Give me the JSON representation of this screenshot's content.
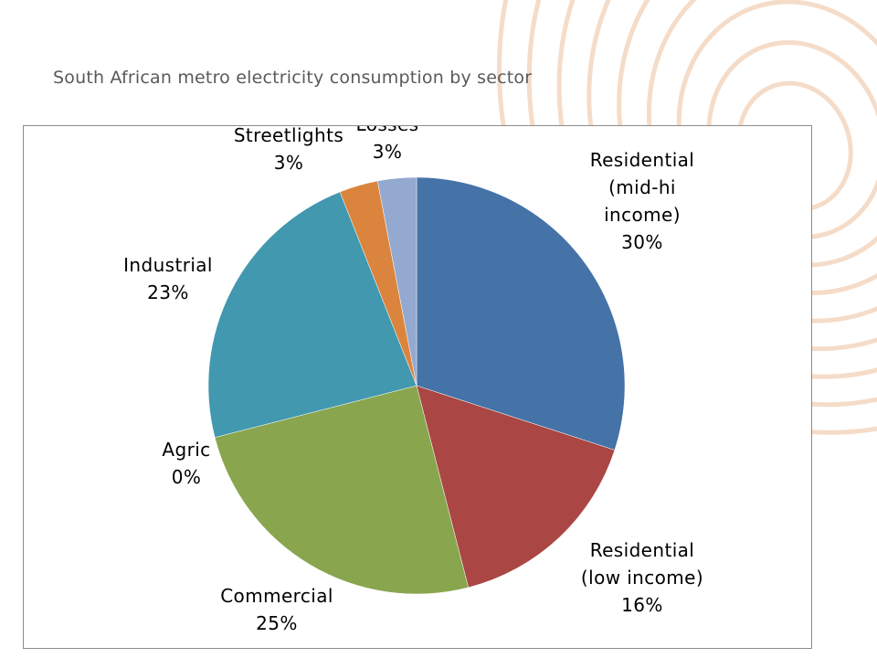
{
  "slide": {
    "title": "South African metro electricity consumption by sector"
  },
  "colors": {
    "decor_ring": "#f5dcc8",
    "frame_border": "#8c8c8c"
  },
  "chart_data": {
    "type": "pie",
    "start_angle_deg": 0,
    "direction": "clockwise",
    "slices": [
      {
        "label_lines": [
          "Residential",
          "(mid-hi",
          "income)",
          "30%"
        ],
        "value": 30,
        "color": "#4572a7"
      },
      {
        "label_lines": [
          "Residential",
          "(low income)",
          "16%"
        ],
        "value": 16,
        "color": "#aa4643"
      },
      {
        "label_lines": [
          "Commercial",
          "25%"
        ],
        "value": 25,
        "color": "#89a54e"
      },
      {
        "label_lines": [
          "Agric",
          "0%"
        ],
        "value": 0,
        "color": "#71588f"
      },
      {
        "label_lines": [
          "Industrial",
          "23%"
        ],
        "value": 23,
        "color": "#4198af"
      },
      {
        "label_lines": [
          "Streetlights",
          "3%"
        ],
        "value": 3,
        "color": "#db843d"
      },
      {
        "label_lines": [
          "Losses",
          "3%"
        ],
        "value": 3,
        "color": "#93a9cf"
      }
    ],
    "legend": "none"
  }
}
